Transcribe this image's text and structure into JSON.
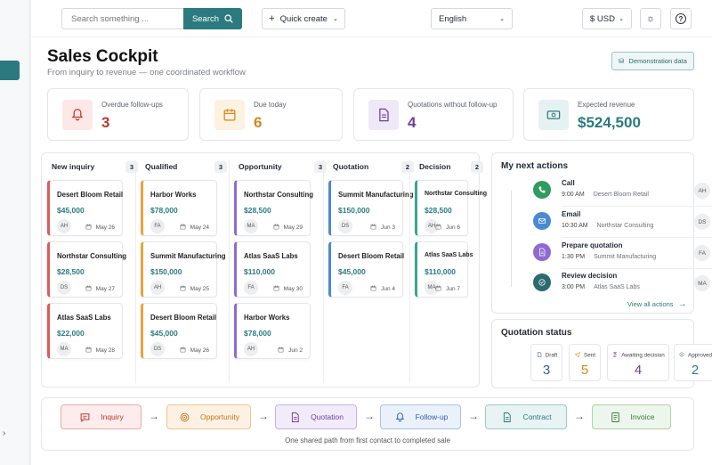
{
  "topbar": {
    "search_placeholder": "Search something ...",
    "search_label": "Search",
    "quick_create": "Quick create",
    "language": "English",
    "currency": "$ USD"
  },
  "header": {
    "title": "Sales Cockpit",
    "subtitle": "From inquiry to revenue — one coordinated workflow",
    "demo_label": "Demonstration data"
  },
  "kpis": [
    {
      "label": "Overdue follow-ups",
      "value": "3",
      "color": "#c0392b",
      "bg": "#fde8e8",
      "icon": "bell-icon"
    },
    {
      "label": "Due today",
      "value": "6",
      "color": "#d4861f",
      "bg": "#fdf1e0",
      "icon": "calendar-icon"
    },
    {
      "label": "Quotations without follow-up",
      "value": "4",
      "color": "#6b3fa0",
      "bg": "#efe8f8",
      "icon": "document-icon"
    },
    {
      "label": "Expected revenue",
      "value": "$524,500",
      "color": "#2b7a7f",
      "bg": "#e6f2f2",
      "icon": "money-icon"
    }
  ],
  "pipeline": {
    "columns": [
      {
        "name": "New inquiry",
        "count": "3",
        "color": "#e05a5a",
        "cards": [
          {
            "name": "Desert Bloom Retail",
            "amount": "$45,000",
            "owner": "AH",
            "date": "May 26"
          },
          {
            "name": "Northstar Consulting",
            "amount": "$28,500",
            "owner": "DS",
            "date": "May 27"
          },
          {
            "name": "Atlas SaaS Labs",
            "amount": "$22,000",
            "owner": "MA",
            "date": "May 28"
          }
        ]
      },
      {
        "name": "Qualified",
        "count": "3",
        "color": "#e8a43a",
        "cards": [
          {
            "name": "Harbor Works",
            "amount": "$78,000",
            "owner": "FA",
            "date": "May 24"
          },
          {
            "name": "Summit Manufacturing",
            "amount": "$150,000",
            "owner": "AH",
            "date": "May 25"
          },
          {
            "name": "Desert Bloom Retail",
            "amount": "$45,000",
            "owner": "DS",
            "date": "May 26"
          }
        ]
      },
      {
        "name": "Opportunity",
        "count": "3",
        "color": "#8e6bd1",
        "cards": [
          {
            "name": "Northstar Consulting",
            "amount": "$28,500",
            "owner": "MA",
            "date": "May 29"
          },
          {
            "name": "Atlas SaaS Labs",
            "amount": "$110,000",
            "owner": "FA",
            "date": "May 30"
          },
          {
            "name": "Harbor Works",
            "amount": "$78,000",
            "owner": "AH",
            "date": "Jun 2"
          }
        ]
      },
      {
        "name": "Quotation",
        "count": "2",
        "color": "#4a8ad4",
        "cards": [
          {
            "name": "Summit Manufacturing",
            "amount": "$150,000",
            "owner": "DS",
            "date": "Jun 3"
          },
          {
            "name": "Desert Bloom Retail",
            "amount": "$45,000",
            "owner": "FA",
            "date": "Jun 4"
          }
        ]
      },
      {
        "name": "Decision",
        "count": "2",
        "color": "#3aa68c",
        "cards": [
          {
            "name": "Northstar Consulting",
            "amount": "$28,500",
            "owner": "AH",
            "date": "Jun 6"
          },
          {
            "name": "Atlas SaaS Labs",
            "amount": "$110,000",
            "owner": "MA",
            "date": "Jun 7"
          }
        ]
      }
    ]
  },
  "next_actions": {
    "title": "My next actions",
    "view_all": "View all actions",
    "items": [
      {
        "type": "Call",
        "time": "9:00 AM",
        "company": "Desert Bloom Retail",
        "owner": "AH",
        "color": "#2e9b5f",
        "icon": "phone-icon"
      },
      {
        "type": "Email",
        "time": "10:30 AM",
        "company": "Northstar Consulting",
        "owner": "DS",
        "color": "#4a8ad4",
        "icon": "mail-icon"
      },
      {
        "type": "Prepare quotation",
        "time": "1:30 PM",
        "company": "Summit Manufacturing",
        "owner": "FA",
        "color": "#8e6bd1",
        "icon": "document-icon"
      },
      {
        "type": "Review decision",
        "time": "3:00 PM",
        "company": "Atlas SaaS Labs",
        "owner": "MA",
        "color": "#2b6b70",
        "icon": "check-icon"
      }
    ]
  },
  "quotation_status": {
    "title": "Quotation status",
    "items": [
      {
        "label": "Draft",
        "value": "3",
        "color": "#2d5fa8",
        "icon": "file-icon"
      },
      {
        "label": "Sent",
        "value": "5",
        "color": "#d4861f",
        "icon": "send-icon"
      },
      {
        "label": "Awaiting decision",
        "value": "4",
        "color": "#6b3fa0",
        "icon": "hourglass-icon"
      },
      {
        "label": "Approved",
        "value": "2",
        "color": "#2b7a7f",
        "icon": "check-icon"
      }
    ]
  },
  "flow": {
    "caption": "One shared path from first contact to completed sale",
    "steps": [
      {
        "label": "Inquiry",
        "color": "#c0392b",
        "bg": "#fdecec",
        "border": "#e9a9a9",
        "icon": "chat-icon"
      },
      {
        "label": "Opportunity",
        "color": "#c9731e",
        "bg": "#fdf1e3",
        "border": "#ecc492",
        "icon": "target-icon"
      },
      {
        "label": "Quotation",
        "color": "#6b3fa0",
        "bg": "#f2ecfa",
        "border": "#c5b2e4",
        "icon": "document-icon"
      },
      {
        "label": "Follow-up",
        "color": "#2d5fa8",
        "bg": "#eaf1fb",
        "border": "#a8c2e6",
        "icon": "bell-icon"
      },
      {
        "label": "Contract",
        "color": "#2b7a7f",
        "bg": "#e8f3f3",
        "border": "#9ec9cb",
        "icon": "document-icon"
      },
      {
        "label": "Invoice",
        "color": "#3d7a3d",
        "bg": "#edf6ec",
        "border": "#add1a9",
        "icon": "invoice-icon"
      }
    ]
  }
}
